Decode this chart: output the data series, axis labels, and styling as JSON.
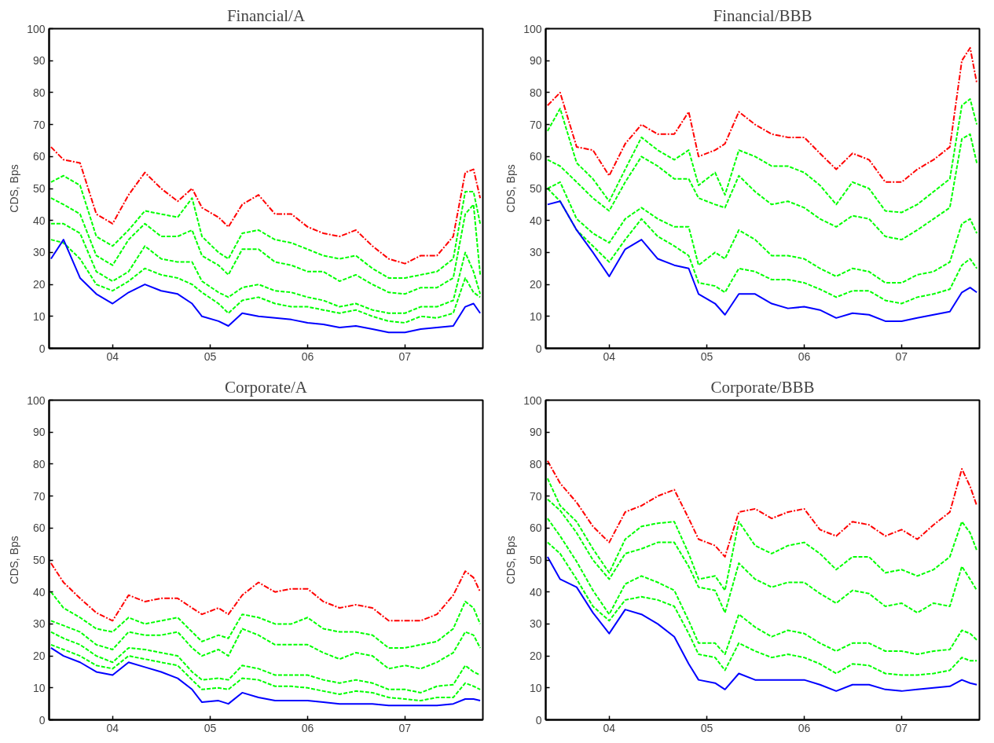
{
  "chart_data": [
    {
      "type": "line",
      "title": "Financial/A",
      "ylabel": "CDS, Bps",
      "xlim": [
        "2003-05-08",
        "2007-10-20"
      ],
      "ylim": [
        0,
        100
      ],
      "yticks": [
        0,
        10,
        20,
        30,
        40,
        50,
        60,
        70,
        80,
        90,
        100
      ],
      "xticks": [
        {
          "value": "2004-01-01",
          "label": "04"
        },
        {
          "value": "2005-01-01",
          "label": "05"
        },
        {
          "value": "2006-01-01",
          "label": "06"
        },
        {
          "value": "2007-01-01",
          "label": "07"
        }
      ],
      "grid": false,
      "x": [
        "2003-05-15",
        "2003-07-01",
        "2003-09-01",
        "2003-11-01",
        "2004-01-01",
        "2004-03-01",
        "2004-05-01",
        "2004-07-01",
        "2004-09-01",
        "2004-10-25",
        "2004-12-01",
        "2005-02-01",
        "2005-03-10",
        "2005-05-01",
        "2005-07-01",
        "2005-09-01",
        "2005-11-01",
        "2006-01-01",
        "2006-03-01",
        "2006-05-01",
        "2006-07-01",
        "2006-09-01",
        "2006-11-01",
        "2007-01-01",
        "2007-03-01",
        "2007-05-01",
        "2007-07-01",
        "2007-08-15",
        "2007-09-15",
        "2007-10-10"
      ],
      "series": [
        {
          "color": "#ff0000",
          "line_style": "dashdot",
          "values": [
            63,
            59,
            58,
            42,
            39,
            48,
            55,
            50,
            46,
            50,
            44,
            41,
            38,
            45,
            48,
            42,
            42,
            38,
            36,
            35,
            37,
            32,
            28,
            26.5,
            29,
            29,
            35,
            55,
            56,
            47
          ]
        },
        {
          "color": "#00ff00",
          "line_style": "dashed",
          "values": [
            52,
            54,
            51,
            35,
            32,
            37,
            43,
            42,
            41,
            47,
            35,
            30,
            28,
            36,
            37,
            34,
            33,
            31,
            29,
            28,
            29,
            25,
            22,
            22,
            23,
            24,
            28,
            49,
            49,
            39
          ]
        },
        {
          "color": "#00ff00",
          "line_style": "dashed",
          "values": [
            47,
            45,
            42,
            29,
            26,
            34,
            39,
            35,
            35,
            37,
            29,
            26,
            23,
            31,
            31,
            27,
            26,
            24,
            24,
            21,
            23,
            20,
            17.5,
            17,
            19,
            19,
            22,
            42,
            45,
            23
          ]
        },
        {
          "color": "#00ff00",
          "line_style": "dashed",
          "values": [
            39,
            39,
            36,
            24,
            21,
            24,
            32,
            28,
            27,
            27,
            21,
            17.5,
            16,
            19,
            20,
            18,
            17.5,
            16,
            15,
            13,
            14,
            12,
            11,
            11,
            13,
            13,
            15,
            30,
            24,
            17
          ]
        },
        {
          "color": "#00ff00",
          "line_style": "dashed",
          "values": [
            34,
            33,
            28,
            20,
            18,
            21,
            25,
            23,
            22,
            20,
            17.5,
            14,
            11,
            15,
            16,
            14,
            13,
            13,
            12,
            11,
            12,
            10,
            8.5,
            8,
            10,
            9.5,
            11,
            22,
            17.5,
            16
          ]
        },
        {
          "color": "#0000ff",
          "line_style": "solid",
          "values": [
            28,
            34,
            22,
            17,
            14,
            17.5,
            20,
            18,
            17,
            14,
            10,
            8.5,
            7,
            11,
            10,
            9.5,
            9,
            8,
            7.5,
            6.5,
            7,
            6,
            5,
            5,
            6,
            6.5,
            7,
            13,
            14,
            11
          ]
        }
      ]
    },
    {
      "type": "line",
      "title": "Financial/BBB",
      "ylabel": "CDS, Bps",
      "xlim": [
        "2003-05-08",
        "2007-10-20"
      ],
      "ylim": [
        0,
        100
      ],
      "yticks": [
        0,
        10,
        20,
        30,
        40,
        50,
        60,
        70,
        80,
        90,
        100
      ],
      "xticks": [
        {
          "value": "2004-01-01",
          "label": "04"
        },
        {
          "value": "2005-01-01",
          "label": "05"
        },
        {
          "value": "2006-01-01",
          "label": "06"
        },
        {
          "value": "2007-01-01",
          "label": "07"
        }
      ],
      "grid": false,
      "x": [
        "2003-05-15",
        "2003-07-01",
        "2003-09-01",
        "2003-11-01",
        "2004-01-01",
        "2004-03-01",
        "2004-05-01",
        "2004-07-01",
        "2004-09-01",
        "2004-10-25",
        "2004-12-01",
        "2005-02-01",
        "2005-03-10",
        "2005-05-01",
        "2005-07-01",
        "2005-09-01",
        "2005-11-01",
        "2006-01-01",
        "2006-03-01",
        "2006-05-01",
        "2006-07-01",
        "2006-09-01",
        "2006-11-01",
        "2007-01-01",
        "2007-03-01",
        "2007-05-01",
        "2007-07-01",
        "2007-08-15",
        "2007-09-15",
        "2007-10-10"
      ],
      "series": [
        {
          "color": "#ff0000",
          "line_style": "dashdot",
          "values": [
            76,
            80,
            63,
            62,
            54,
            64,
            70,
            67,
            67,
            74,
            60,
            62,
            64,
            74,
            70,
            67,
            66,
            66,
            61,
            56,
            61,
            59,
            52,
            52,
            56,
            59,
            63,
            90,
            94,
            83
          ]
        },
        {
          "color": "#00ff00",
          "line_style": "dashed",
          "values": [
            68,
            75,
            58,
            53,
            46,
            56,
            66,
            62,
            59,
            62,
            51,
            55,
            48,
            62,
            60,
            57,
            57,
            55,
            51,
            45,
            52,
            50,
            43,
            42.5,
            45,
            49,
            53,
            76,
            78,
            70
          ]
        },
        {
          "color": "#00ff00",
          "line_style": "dashed",
          "values": [
            59,
            57,
            52,
            47,
            43,
            52,
            60,
            57,
            53,
            53,
            47,
            45,
            44,
            54,
            49,
            45,
            46,
            44,
            40.5,
            38,
            41.5,
            40.5,
            35,
            34,
            37,
            40.5,
            44,
            65.5,
            67,
            58
          ]
        },
        {
          "color": "#00ff00",
          "line_style": "dashed",
          "values": [
            50,
            52,
            40.5,
            36,
            33,
            40.5,
            44,
            40.5,
            38,
            38,
            26,
            30,
            28,
            37,
            34,
            29,
            29,
            28,
            25,
            22.5,
            25,
            24,
            20.5,
            20.5,
            23,
            24,
            27,
            39,
            40.5,
            36
          ]
        },
        {
          "color": "#00ff00",
          "line_style": "dashed",
          "values": [
            50,
            46,
            37,
            32,
            27,
            34,
            40.5,
            35,
            32,
            29,
            20.5,
            19.5,
            17.5,
            25,
            24,
            21.5,
            21.5,
            20.5,
            18.5,
            16,
            18,
            18,
            15,
            14,
            16,
            17,
            18.5,
            26,
            28,
            25
          ]
        },
        {
          "color": "#0000ff",
          "line_style": "solid",
          "values": [
            45,
            46,
            37,
            30,
            22.5,
            31,
            34,
            28,
            26,
            25,
            17,
            14,
            10.5,
            17,
            17,
            14,
            12.5,
            13,
            12,
            9.5,
            11,
            10.5,
            8.5,
            8.5,
            9.5,
            10.5,
            11.5,
            17.5,
            19,
            17.5
          ]
        }
      ]
    },
    {
      "type": "line",
      "title": "Corporate/A",
      "ylabel": "CDS, Bps",
      "xlim": [
        "2003-05-08",
        "2007-10-20"
      ],
      "ylim": [
        0,
        100
      ],
      "yticks": [
        0,
        10,
        20,
        30,
        40,
        50,
        60,
        70,
        80,
        90,
        100
      ],
      "xticks": [
        {
          "value": "2004-01-01",
          "label": "04"
        },
        {
          "value": "2005-01-01",
          "label": "05"
        },
        {
          "value": "2006-01-01",
          "label": "06"
        },
        {
          "value": "2007-01-01",
          "label": "07"
        }
      ],
      "grid": false,
      "x": [
        "2003-05-15",
        "2003-07-01",
        "2003-09-01",
        "2003-11-01",
        "2004-01-01",
        "2004-03-01",
        "2004-05-01",
        "2004-07-01",
        "2004-09-01",
        "2004-10-25",
        "2004-12-01",
        "2005-02-01",
        "2005-03-10",
        "2005-05-01",
        "2005-07-01",
        "2005-09-01",
        "2005-11-01",
        "2006-01-01",
        "2006-03-01",
        "2006-05-01",
        "2006-07-01",
        "2006-09-01",
        "2006-11-01",
        "2007-01-01",
        "2007-03-01",
        "2007-05-01",
        "2007-07-01",
        "2007-08-15",
        "2007-09-15",
        "2007-10-10"
      ],
      "series": [
        {
          "color": "#ff0000",
          "line_style": "dashdot",
          "values": [
            49,
            43,
            38,
            33.5,
            31,
            39,
            37,
            38,
            38,
            35,
            33,
            35,
            33,
            39,
            43,
            40,
            41,
            41,
            37,
            35,
            36,
            35,
            31,
            31,
            31,
            33,
            39,
            46.5,
            44.5,
            40
          ]
        },
        {
          "color": "#00ff00",
          "line_style": "dashed",
          "values": [
            40,
            35,
            32,
            28.5,
            27.5,
            32,
            30,
            31,
            32,
            27.5,
            24.5,
            26.5,
            25.5,
            33,
            32,
            30,
            30,
            32,
            28.5,
            27.5,
            27.5,
            26.5,
            22.5,
            22.5,
            23.5,
            24.5,
            28.5,
            37,
            35,
            30
          ]
        },
        {
          "color": "#00ff00",
          "line_style": "dashed",
          "values": [
            31,
            29.5,
            27.5,
            23.5,
            22,
            27.5,
            26.5,
            26.5,
            27.5,
            22.5,
            20,
            22,
            20,
            28.5,
            26.5,
            23.5,
            23.5,
            23.5,
            21,
            19,
            21,
            20,
            16,
            17,
            16,
            18,
            21,
            27.5,
            26.5,
            22.5
          ]
        },
        {
          "color": "#00ff00",
          "line_style": "dashed",
          "values": [
            27.5,
            25.5,
            23.5,
            20,
            18,
            22.5,
            22,
            21,
            20,
            15,
            12.5,
            13,
            12.5,
            17,
            16,
            14,
            14,
            14,
            12.5,
            11.5,
            12.5,
            11.5,
            9.5,
            9.5,
            8.5,
            10.5,
            11,
            17,
            15,
            14
          ]
        },
        {
          "color": "#00ff00",
          "line_style": "dashed",
          "values": [
            23.5,
            22,
            20,
            17,
            16,
            20,
            19,
            18,
            17,
            12.5,
            9.5,
            10,
            9.5,
            13,
            12.5,
            10.5,
            10.5,
            10,
            9,
            8,
            9,
            8.5,
            7,
            6.5,
            6,
            7,
            7,
            11.5,
            10.5,
            9.5
          ]
        },
        {
          "color": "#0000ff",
          "line_style": "solid",
          "values": [
            22.5,
            20,
            18,
            15,
            14,
            18,
            16.5,
            15,
            13,
            9.5,
            5.5,
            6,
            5,
            8.5,
            7,
            6,
            6,
            6,
            5.5,
            5,
            5,
            5,
            4.5,
            4.5,
            4.5,
            4.5,
            5,
            6.5,
            6.5,
            6
          ]
        }
      ]
    },
    {
      "type": "line",
      "title": "Corporate/BBB",
      "ylabel": "CDS, Bps",
      "xlim": [
        "2003-05-08",
        "2007-10-20"
      ],
      "ylim": [
        0,
        100
      ],
      "yticks": [
        0,
        10,
        20,
        30,
        40,
        50,
        60,
        70,
        80,
        90,
        100
      ],
      "xticks": [
        {
          "value": "2004-01-01",
          "label": "04"
        },
        {
          "value": "2005-01-01",
          "label": "05"
        },
        {
          "value": "2006-01-01",
          "label": "06"
        },
        {
          "value": "2007-01-01",
          "label": "07"
        }
      ],
      "grid": false,
      "x": [
        "2003-05-15",
        "2003-07-01",
        "2003-09-01",
        "2003-11-01",
        "2004-01-01",
        "2004-03-01",
        "2004-05-01",
        "2004-07-01",
        "2004-09-01",
        "2004-10-25",
        "2004-12-01",
        "2005-02-01",
        "2005-03-10",
        "2005-05-01",
        "2005-07-01",
        "2005-09-01",
        "2005-11-01",
        "2006-01-01",
        "2006-03-01",
        "2006-05-01",
        "2006-07-01",
        "2006-09-01",
        "2006-11-01",
        "2007-01-01",
        "2007-03-01",
        "2007-05-01",
        "2007-07-01",
        "2007-08-15",
        "2007-09-15",
        "2007-10-10"
      ],
      "series": [
        {
          "color": "#ff0000",
          "line_style": "dashdot",
          "values": [
            81,
            74,
            68,
            60.5,
            55.5,
            65,
            67,
            70,
            72,
            63,
            56.5,
            54.5,
            51,
            65,
            66,
            63,
            65,
            66,
            59.5,
            57.5,
            62,
            61,
            57.5,
            59.5,
            56.5,
            61,
            65,
            78.5,
            73,
            67
          ]
        },
        {
          "color": "#00ff00",
          "line_style": "dashed",
          "values": [
            75.5,
            67,
            62,
            53.5,
            46,
            56.5,
            60.5,
            61.5,
            62,
            52,
            44,
            45,
            40.5,
            62,
            54.5,
            52,
            54.5,
            55.5,
            52,
            47,
            51,
            51,
            46,
            47,
            45,
            47,
            51,
            62,
            58.5,
            53
          ]
        },
        {
          "color": "#00ff00",
          "line_style": "dashed",
          "values": [
            69,
            65.5,
            58.5,
            50,
            44,
            52,
            53.5,
            55.5,
            55.5,
            48,
            41.5,
            40.5,
            33.5,
            49,
            44,
            41.5,
            43,
            43,
            39.5,
            36.5,
            40.5,
            39.5,
            35.5,
            36.5,
            33.5,
            36.5,
            35.5,
            48,
            44,
            40.5
          ]
        },
        {
          "color": "#00ff00",
          "line_style": "dashed",
          "values": [
            63,
            57.5,
            49.5,
            40.5,
            33,
            42.5,
            45,
            43,
            40.5,
            31,
            24,
            24,
            20.5,
            33,
            29,
            26,
            28,
            27,
            24,
            21.5,
            24,
            24,
            21.5,
            21.5,
            20.5,
            21.5,
            22,
            28,
            27,
            25
          ]
        },
        {
          "color": "#00ff00",
          "line_style": "dashed",
          "values": [
            55.5,
            52,
            44,
            35.5,
            31,
            37.5,
            38.5,
            37.5,
            35.5,
            27,
            20.5,
            19.5,
            15.5,
            24,
            21.5,
            19.5,
            20.5,
            19.5,
            17.5,
            14.5,
            17.5,
            17,
            14.5,
            14,
            14,
            14.5,
            15.5,
            19.5,
            18.5,
            18.5
          ]
        },
        {
          "color": "#0000ff",
          "line_style": "solid",
          "values": [
            51,
            44,
            41.5,
            33.5,
            27,
            34.5,
            33,
            30,
            26,
            17.5,
            12.5,
            11.5,
            9.5,
            14.5,
            12.5,
            12.5,
            12.5,
            12.5,
            11,
            9,
            11,
            11,
            9.5,
            9,
            9.5,
            10,
            10.5,
            12.5,
            11.5,
            11
          ]
        }
      ]
    }
  ]
}
